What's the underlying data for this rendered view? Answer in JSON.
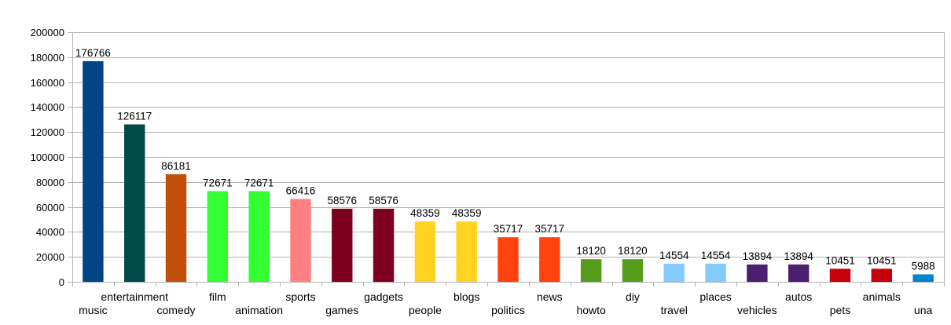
{
  "chart_data": {
    "type": "bar",
    "categories": [
      "music",
      "entertainment",
      "comedy",
      "film",
      "animation",
      "sports",
      "games",
      "gadgets",
      "people",
      "blogs",
      "politics",
      "news",
      "howto",
      "diy",
      "travel",
      "places",
      "vehicles",
      "autos",
      "pets",
      "animals",
      "una"
    ],
    "values": [
      176766,
      126117,
      86181,
      72671,
      72671,
      66416,
      58576,
      58576,
      48359,
      48359,
      35717,
      35717,
      18120,
      18120,
      14554,
      14554,
      13894,
      13894,
      10451,
      10451,
      5988
    ],
    "colors": [
      "#004586",
      "#004A4A",
      "#C0500A",
      "#33FF33",
      "#33FF33",
      "#FF8080",
      "#7E0021",
      "#7E0021",
      "#FFD320",
      "#FFD320",
      "#FF420E",
      "#FF420E",
      "#579D1C",
      "#579D1C",
      "#83CAFF",
      "#83CAFF",
      "#4B1F6F",
      "#4B1F6F",
      "#C5000B",
      "#C5000B",
      "#0084D1"
    ],
    "title": "",
    "xlabel": "",
    "ylabel": "",
    "ylim": [
      0,
      200000
    ],
    "yticks": [
      0,
      20000,
      40000,
      60000,
      80000,
      100000,
      120000,
      140000,
      160000,
      180000,
      200000
    ],
    "grid": true,
    "legend": "none",
    "data_labels": true
  }
}
